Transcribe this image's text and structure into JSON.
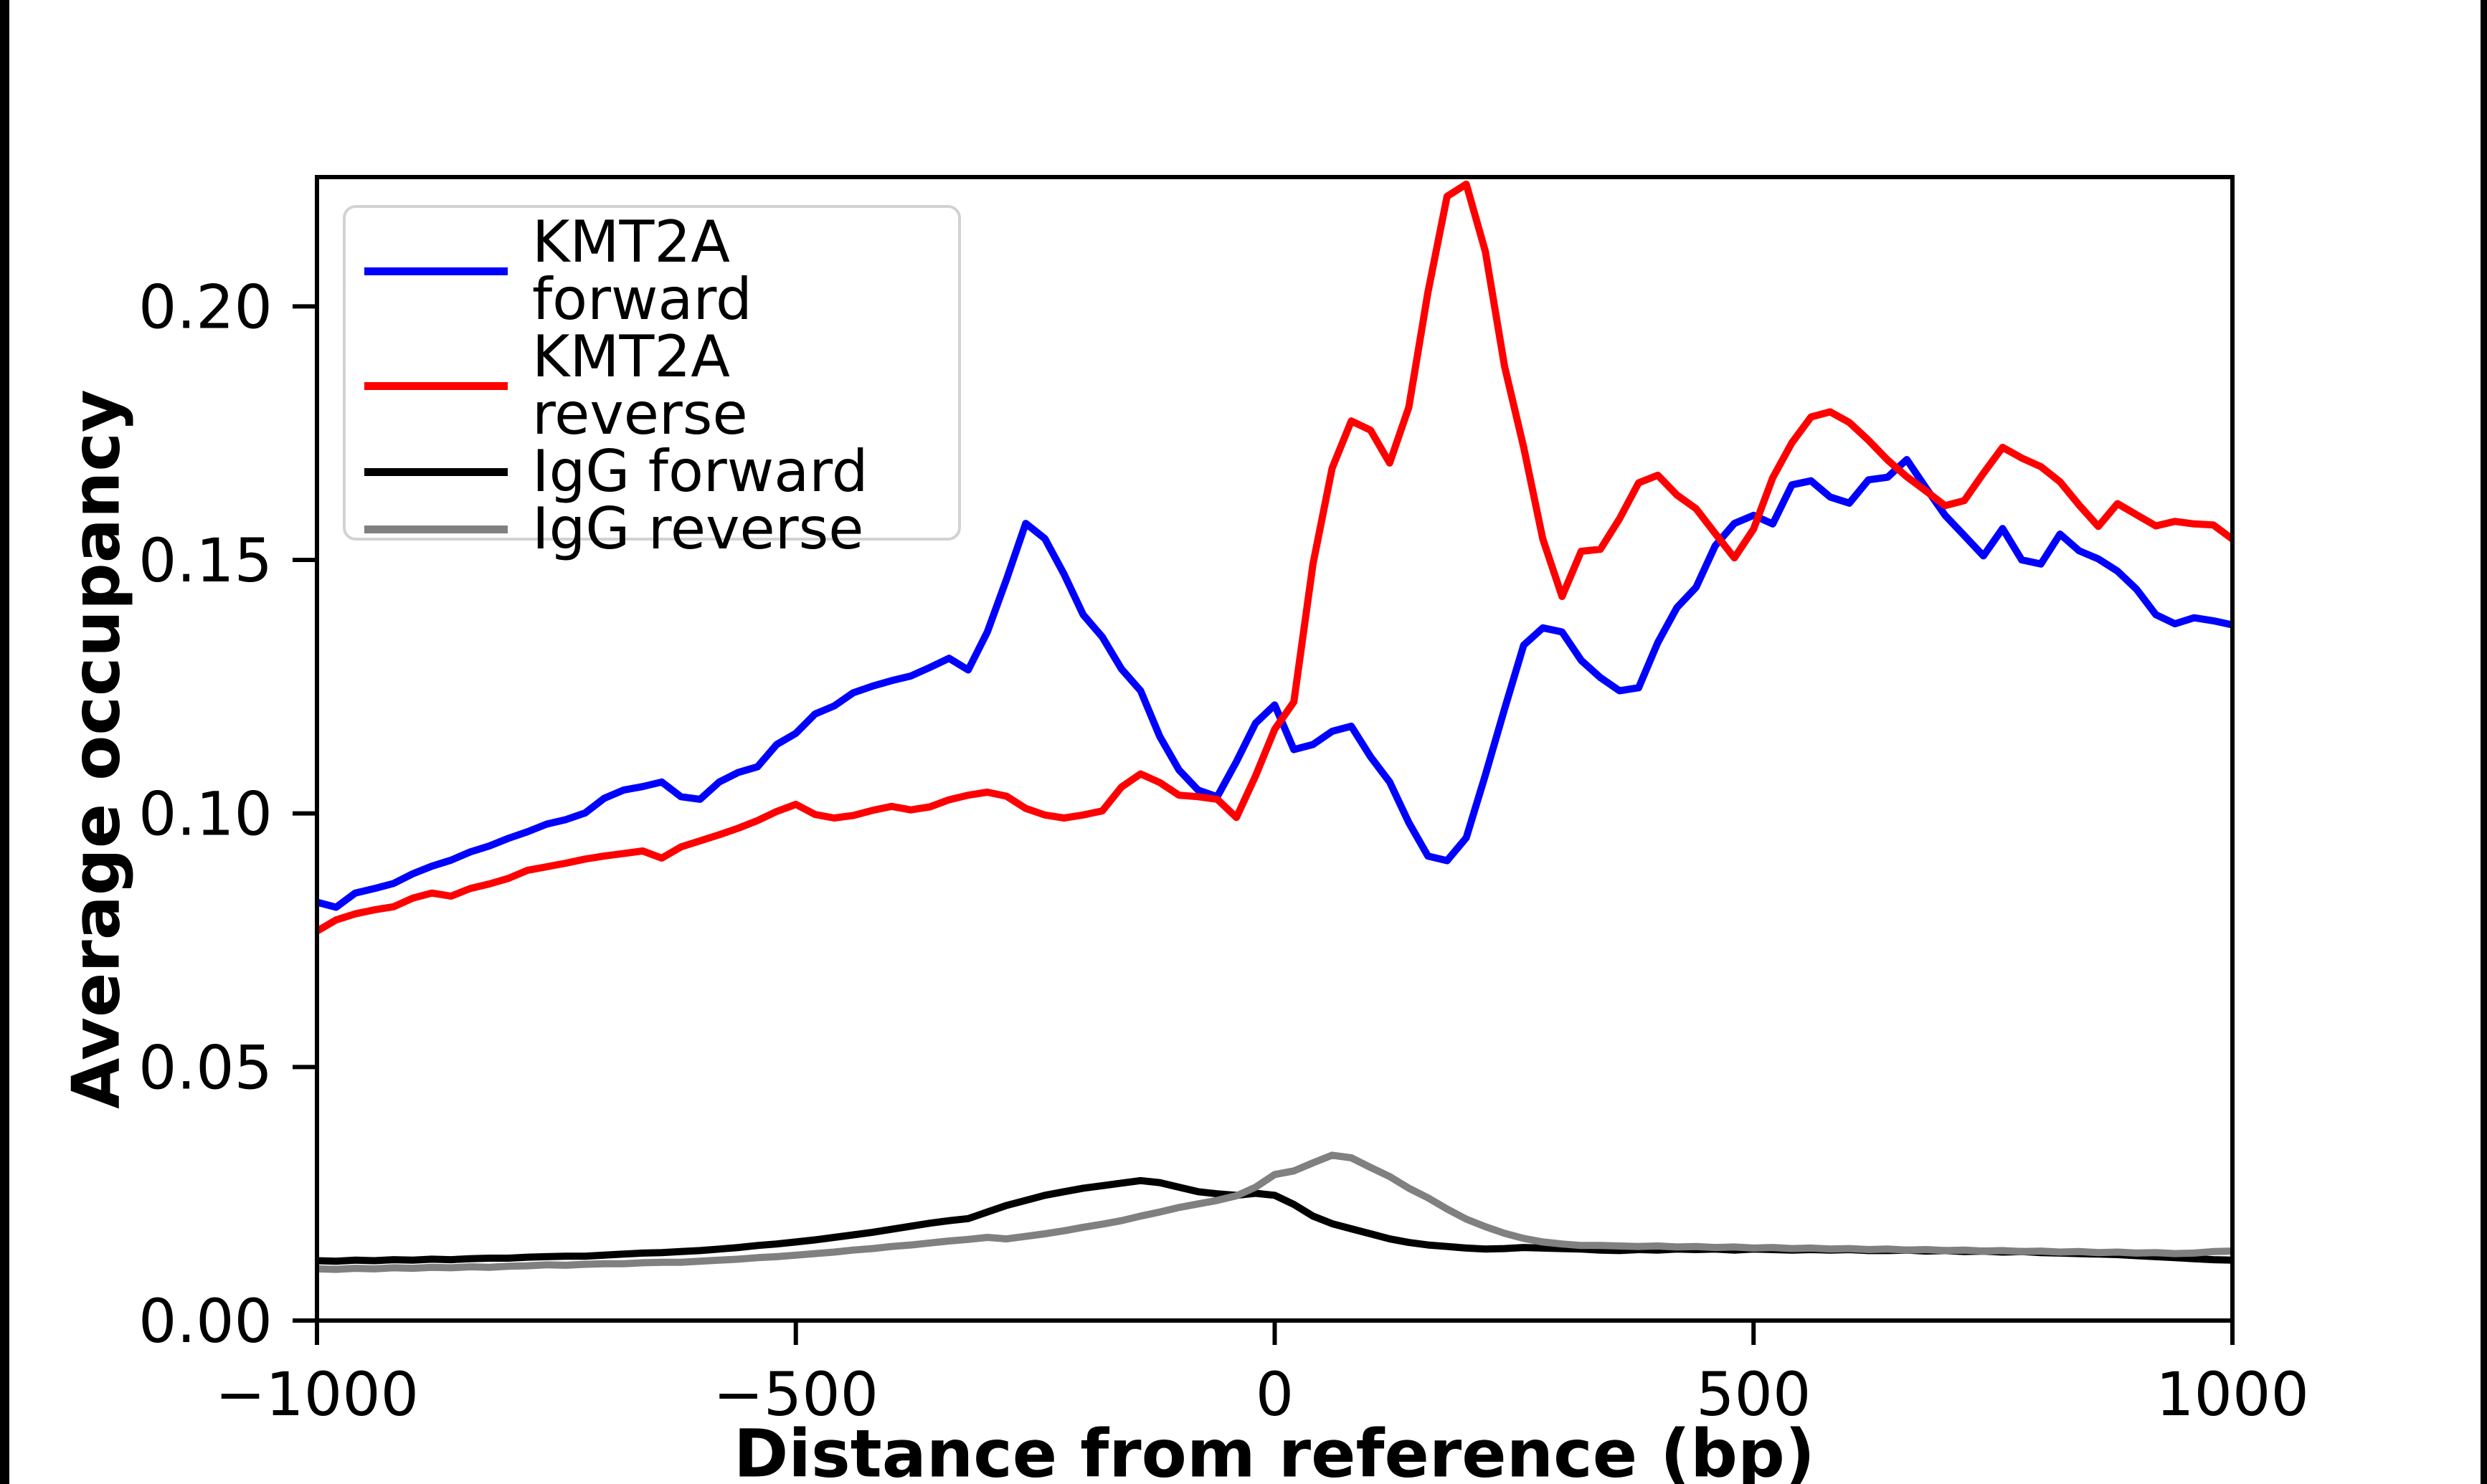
{
  "chart_data": {
    "type": "line",
    "title": "",
    "xlabel": "Distance from reference (bp)",
    "ylabel": "Average occupancy",
    "xlim": [
      -1000,
      1000
    ],
    "ylim": [
      0,
      0.2255
    ],
    "x_start": -1000,
    "x_step": 20,
    "grid": false,
    "legend_position": "upper left",
    "xticks": {
      "values": [
        -1000,
        -500,
        0,
        500,
        1000
      ],
      "labels": [
        "−1000",
        "−500",
        "0",
        "500",
        "1000"
      ]
    },
    "yticks": {
      "values": [
        0,
        0.05,
        0.1,
        0.15,
        0.2
      ],
      "labels": [
        "0.00",
        "0.05",
        "0.10",
        "0.15",
        "0.20"
      ]
    },
    "series": [
      {
        "name": "KMT2A forward",
        "color": "#0000ff",
        "values": [
          0.0825,
          0.0815,
          0.0843,
          0.0852,
          0.0862,
          0.0881,
          0.0896,
          0.0908,
          0.0924,
          0.0936,
          0.0951,
          0.0964,
          0.0979,
          0.0988,
          0.1001,
          0.103,
          0.1046,
          0.1053,
          0.1062,
          0.1033,
          0.1028,
          0.1062,
          0.1081,
          0.1092,
          0.1136,
          0.1158,
          0.1196,
          0.1212,
          0.1238,
          0.1251,
          0.1262,
          0.1271,
          0.1288,
          0.1306,
          0.1283,
          0.1358,
          0.1462,
          0.1572,
          0.1542,
          0.1472,
          0.1392,
          0.1348,
          0.1285,
          0.1242,
          0.1152,
          0.1086,
          0.1046,
          0.1033,
          0.1102,
          0.1178,
          0.1214,
          0.1126,
          0.1136,
          0.1162,
          0.1172,
          0.1112,
          0.1062,
          0.0982,
          0.0916,
          0.0907,
          0.0952,
          0.1076,
          0.1206,
          0.1332,
          0.1366,
          0.1358,
          0.1302,
          0.1268,
          0.1242,
          0.1248,
          0.1337,
          0.1406,
          0.1446,
          0.1528,
          0.1572,
          0.1588,
          0.1571,
          0.1648,
          0.1656,
          0.1624,
          0.1612,
          0.1658,
          0.1663,
          0.1698,
          0.1642,
          0.1588,
          0.1548,
          0.1508,
          0.1562,
          0.15,
          0.1492,
          0.1551,
          0.1518,
          0.1502,
          0.1478,
          0.1442,
          0.1392,
          0.1374,
          0.1386,
          0.138,
          0.1372
        ]
      },
      {
        "name": "KMT2A reverse",
        "color": "#ff0000",
        "values": [
          0.0768,
          0.079,
          0.0802,
          0.081,
          0.0816,
          0.0833,
          0.0843,
          0.0837,
          0.0852,
          0.0861,
          0.0872,
          0.0888,
          0.0895,
          0.0902,
          0.091,
          0.0916,
          0.0921,
          0.0926,
          0.0912,
          0.0934,
          0.0946,
          0.0958,
          0.0971,
          0.0986,
          0.1004,
          0.1018,
          0.0998,
          0.0991,
          0.0996,
          0.1006,
          0.1014,
          0.1007,
          0.1013,
          0.1027,
          0.1036,
          0.1042,
          0.1034,
          0.101,
          0.0997,
          0.0991,
          0.0997,
          0.1005,
          0.1052,
          0.1078,
          0.1061,
          0.1036,
          0.1033,
          0.1028,
          0.0992,
          0.1074,
          0.1166,
          0.122,
          0.1492,
          0.1681,
          0.1774,
          0.1756,
          0.1691,
          0.1801,
          0.2028,
          0.2217,
          0.2241,
          0.2108,
          0.1882,
          0.1722,
          0.1541,
          0.1428,
          0.1517,
          0.1521,
          0.1581,
          0.1652,
          0.1667,
          0.1628,
          0.1601,
          0.1552,
          0.1504,
          0.1561,
          0.1662,
          0.1731,
          0.1782,
          0.1792,
          0.1771,
          0.1736,
          0.1697,
          0.1664,
          0.1636,
          0.1607,
          0.1617,
          0.1671,
          0.1722,
          0.1701,
          0.1684,
          0.1654,
          0.1608,
          0.1566,
          0.1611,
          0.1589,
          0.1567,
          0.1576,
          0.1571,
          0.1569,
          0.1541
        ]
      },
      {
        "name": "IgG forward",
        "color": "#000000",
        "values": [
          0.0118,
          0.0117,
          0.0119,
          0.0118,
          0.012,
          0.0119,
          0.0121,
          0.012,
          0.0122,
          0.0123,
          0.0123,
          0.0125,
          0.0126,
          0.0127,
          0.0127,
          0.0129,
          0.0131,
          0.0133,
          0.0134,
          0.0136,
          0.0138,
          0.0141,
          0.0144,
          0.0148,
          0.0151,
          0.0155,
          0.0159,
          0.0164,
          0.0169,
          0.0174,
          0.018,
          0.0186,
          0.0192,
          0.0197,
          0.0201,
          0.0214,
          0.0227,
          0.0237,
          0.0247,
          0.0254,
          0.0261,
          0.0266,
          0.0271,
          0.0276,
          0.0272,
          0.0263,
          0.0254,
          0.025,
          0.0247,
          0.0251,
          0.0247,
          0.0229,
          0.0206,
          0.0191,
          0.0181,
          0.0171,
          0.0161,
          0.0154,
          0.0149,
          0.0146,
          0.0143,
          0.0141,
          0.0142,
          0.0144,
          0.0143,
          0.0142,
          0.0141,
          0.0139,
          0.0138,
          0.014,
          0.0139,
          0.0141,
          0.014,
          0.0141,
          0.0139,
          0.0141,
          0.014,
          0.0139,
          0.014,
          0.0139,
          0.014,
          0.0138,
          0.0138,
          0.0139,
          0.0137,
          0.0138,
          0.0136,
          0.0137,
          0.0135,
          0.0136,
          0.0134,
          0.0133,
          0.0132,
          0.0131,
          0.013,
          0.0128,
          0.0126,
          0.0124,
          0.0122,
          0.012,
          0.0119
        ]
      },
      {
        "name": "IgG reverse",
        "color": "#808080",
        "values": [
          0.0102,
          0.0101,
          0.0103,
          0.0102,
          0.0104,
          0.0103,
          0.0105,
          0.0104,
          0.0106,
          0.0105,
          0.0107,
          0.0108,
          0.011,
          0.0109,
          0.0111,
          0.0112,
          0.0112,
          0.0114,
          0.0115,
          0.0115,
          0.0117,
          0.0119,
          0.0121,
          0.0124,
          0.0126,
          0.0129,
          0.0132,
          0.0135,
          0.0139,
          0.0142,
          0.0146,
          0.0149,
          0.0153,
          0.0157,
          0.016,
          0.0164,
          0.0161,
          0.0166,
          0.0171,
          0.0177,
          0.0184,
          0.019,
          0.0197,
          0.0206,
          0.0214,
          0.0223,
          0.023,
          0.0237,
          0.0246,
          0.0263,
          0.0288,
          0.0295,
          0.0311,
          0.0326,
          0.0321,
          0.0302,
          0.0284,
          0.0261,
          0.0242,
          0.022,
          0.02,
          0.0185,
          0.0172,
          0.0162,
          0.0155,
          0.0151,
          0.0148,
          0.0148,
          0.0147,
          0.0146,
          0.0147,
          0.0145,
          0.0146,
          0.0144,
          0.0145,
          0.0143,
          0.0144,
          0.0142,
          0.0143,
          0.0141,
          0.0142,
          0.014,
          0.0141,
          0.0139,
          0.014,
          0.0138,
          0.0139,
          0.0137,
          0.0138,
          0.0136,
          0.0137,
          0.0135,
          0.0136,
          0.0134,
          0.0135,
          0.0133,
          0.0134,
          0.0132,
          0.0133,
          0.0136,
          0.0137
        ]
      }
    ]
  }
}
